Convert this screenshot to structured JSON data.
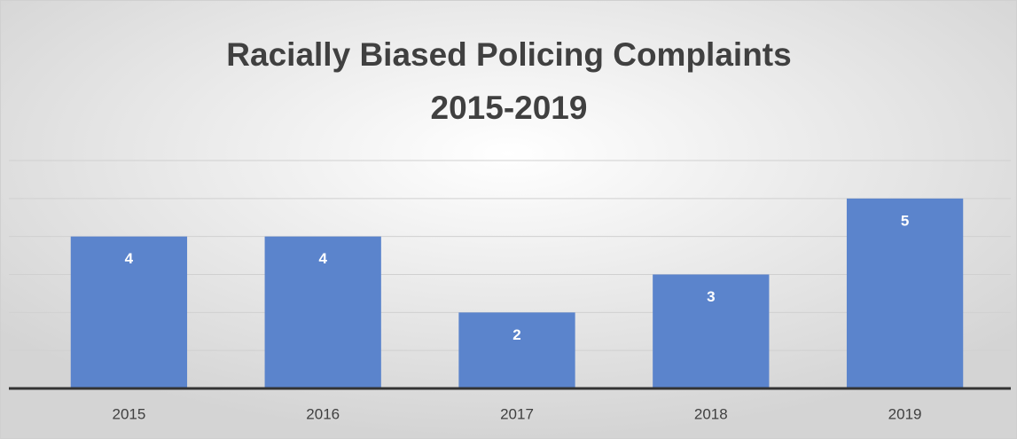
{
  "chart_data": {
    "type": "bar",
    "title": [
      "Racially Biased Policing Complaints",
      "2015-2019"
    ],
    "categories": [
      "2015",
      "2016",
      "2017",
      "2018",
      "2019"
    ],
    "values": [
      4,
      4,
      2,
      3,
      5
    ],
    "color": "#5b84cc",
    "ylim": [
      0,
      6
    ],
    "yticks": [
      0,
      1,
      2,
      3,
      4,
      5,
      6
    ],
    "grid": true
  }
}
